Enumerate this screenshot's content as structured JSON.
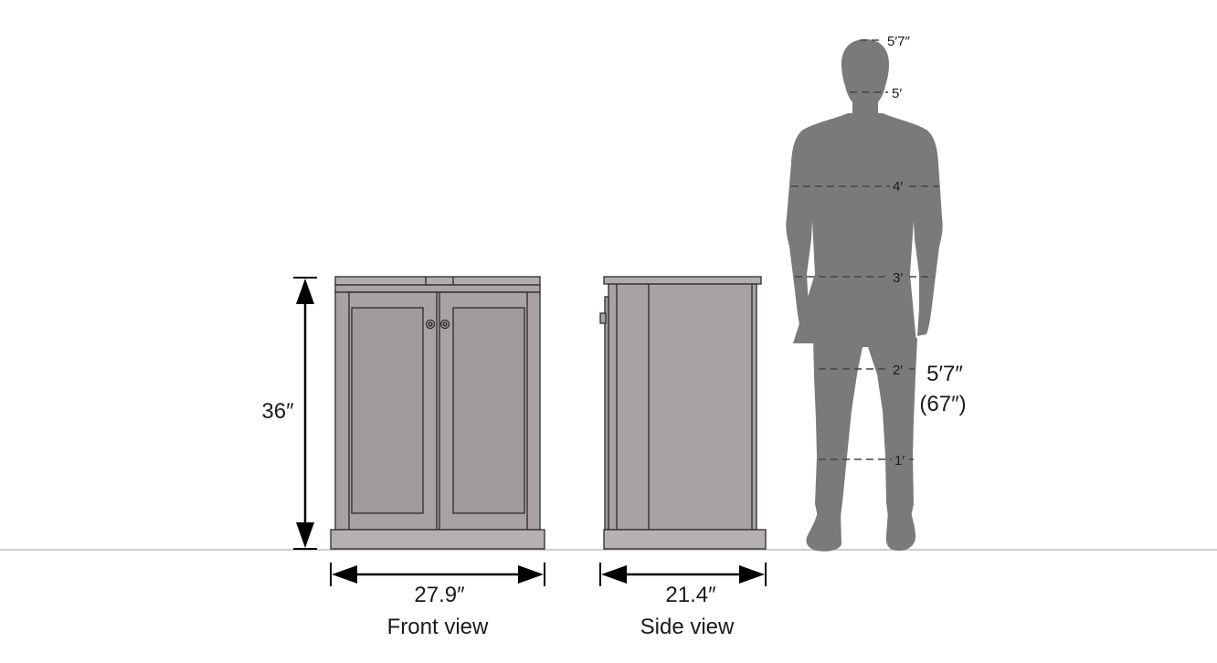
{
  "dimensions": {
    "height": "36″",
    "front_width": "27.9″",
    "side_width": "21.4″"
  },
  "views": {
    "front": "Front view",
    "side": "Side view"
  },
  "person": {
    "height_label": "5′7″",
    "height_inches_label": "(67″)",
    "scale_marks": [
      "5′7″",
      "5′",
      "4′",
      "3′",
      "2′",
      "1′"
    ]
  },
  "colors": {
    "cabinet_fill": "#a8a3a3",
    "cabinet_stroke": "#2b2b2b",
    "silhouette": "#7a7a7a",
    "ground_line": "#b0b0b0",
    "arrow": "#000000"
  }
}
